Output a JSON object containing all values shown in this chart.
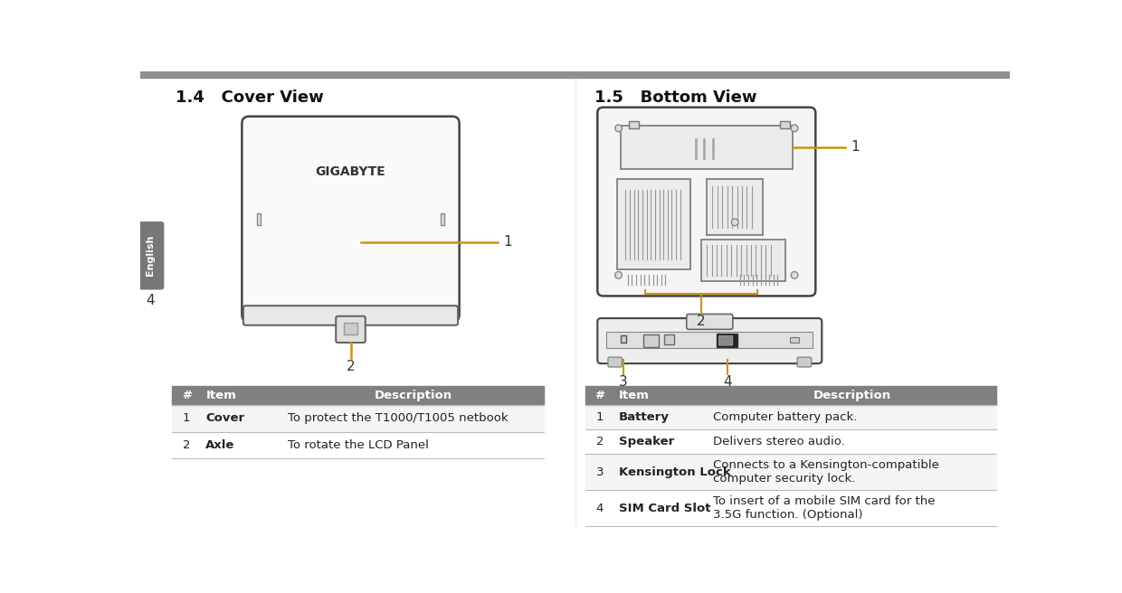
{
  "title_left": "1.4   Cover View",
  "title_right": "1.5   Bottom View",
  "table_left_header": [
    "#",
    "Item",
    "Description"
  ],
  "table_left_rows": [
    [
      "1",
      "Cover",
      "To protect the T1000/T1005 netbook"
    ],
    [
      "2",
      "Axle",
      "To rotate the LCD Panel"
    ]
  ],
  "table_right_header": [
    "#",
    "Item",
    "Description"
  ],
  "table_right_rows": [
    [
      "1",
      "Battery",
      "Computer battery pack."
    ],
    [
      "2",
      "Speaker",
      "Delivers stereo audio."
    ],
    [
      "3",
      "Kensington Lock",
      "Connects to a Kensington-compatible\ncomputer security lock."
    ],
    [
      "4",
      "SIM Card Slot",
      "To insert of a mobile SIM card for the\n3.5G function. (Optional)"
    ]
  ],
  "header_bg": "#808080",
  "header_fg": "#ffffff",
  "top_bar_color": "#909090",
  "sidebar_bg": "#777777",
  "sidebar_text": "English",
  "sidebar_text_color": "#ffffff",
  "accent_color": "#c8960c",
  "bg_color": "#ffffff",
  "divider_line": "#cccccc",
  "border_dark": "#444444",
  "border_mid": "#888888",
  "panel_fill": "#f0f0f0",
  "panel_fill2": "#e8e8e8"
}
